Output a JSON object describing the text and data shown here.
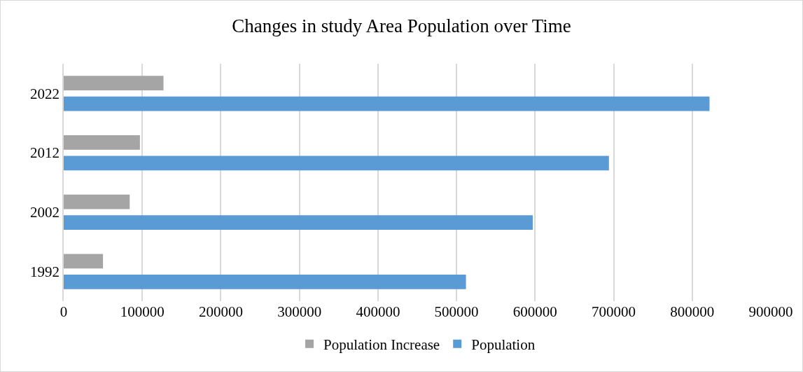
{
  "chart_data": {
    "type": "bar",
    "orientation": "horizontal",
    "title": "Changes in study Area Population over Time",
    "categories": [
      "2022",
      "2012",
      "2002",
      "1992"
    ],
    "series": [
      {
        "name": "Population Increase",
        "color": "#a5a5a5",
        "values": [
          127000,
          97000,
          84000,
          50000
        ]
      },
      {
        "name": "Population",
        "color": "#5b9bd5",
        "values": [
          822000,
          694000,
          597000,
          512000
        ]
      }
    ],
    "xlim": [
      0,
      900000
    ],
    "xticks": [
      0,
      100000,
      200000,
      300000,
      400000,
      500000,
      600000,
      700000,
      800000,
      900000
    ],
    "grid": "x",
    "legend": "bottom"
  }
}
